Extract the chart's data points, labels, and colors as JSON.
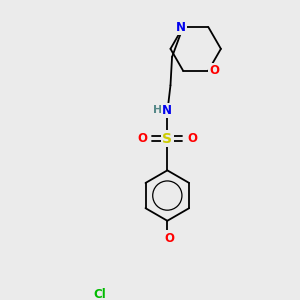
{
  "bg_color": "#ebebeb",
  "atom_colors": {
    "C": "#000000",
    "N": "#0000ee",
    "O": "#ff0000",
    "S": "#cccc00",
    "Cl": "#00bb00",
    "H": "#558888"
  },
  "bond_color": "#000000",
  "font_size": 8.5,
  "figsize": [
    3.0,
    3.0
  ],
  "dpi": 100,
  "bond_lw": 1.3
}
